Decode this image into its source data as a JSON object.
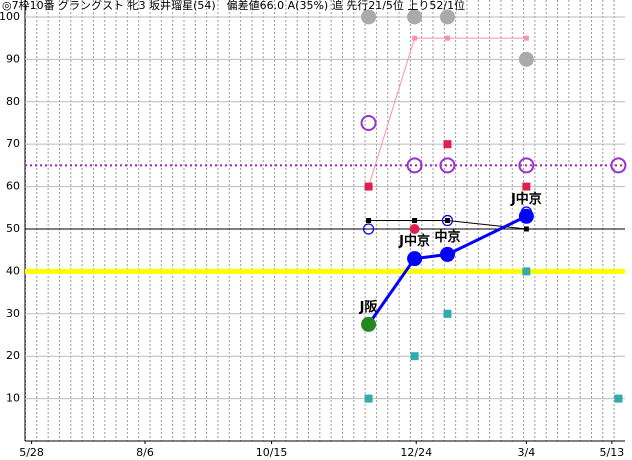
{
  "chart_data": {
    "type": "line",
    "title": "◎7枠10番 グラングスト 牝3 坂井瑠星(54)　偏差値66.0 A(35%) 追 先行21/5位 上り52/1位",
    "xlim": [
      0,
      365
    ],
    "xticks": [
      {
        "value": 4,
        "label": "5/28"
      },
      {
        "value": 73,
        "label": "8/6"
      },
      {
        "value": 150,
        "label": "10/15"
      },
      {
        "value": 238,
        "label": "12/24"
      },
      {
        "value": 305,
        "label": "3/4"
      },
      {
        "value": 357,
        "label": "5/13"
      }
    ],
    "ylim": [
      0,
      104
    ],
    "yticks": [
      10,
      20,
      30,
      40,
      50,
      60,
      70,
      80,
      90,
      100
    ],
    "grid": true,
    "hlines": [
      {
        "value": 50,
        "color": "#000000",
        "style": "thin"
      },
      {
        "value": 65,
        "color": "#a020c0",
        "style": "dotted"
      },
      {
        "value": 40,
        "color": "#ffff00",
        "style": "thick"
      }
    ],
    "series": [
      {
        "color": "#aaaaaa",
        "marker": "big-circle",
        "line": false,
        "x": [
          209,
          237,
          257,
          305
        ],
        "values": [
          100,
          100,
          100,
          90
        ]
      },
      {
        "color": "#9933cc",
        "marker": "ring",
        "line": false,
        "x": [
          209,
          237,
          257,
          305,
          361
        ],
        "values": [
          75,
          65,
          65,
          65,
          65
        ]
      },
      {
        "color": "#ff8fb0",
        "marker": "small-square",
        "line": true,
        "x": [
          209,
          237,
          257,
          305
        ],
        "values": [
          60,
          95,
          95,
          95
        ]
      },
      {
        "color": "#e0204a",
        "marker": "square",
        "line": false,
        "x": [
          209,
          257,
          305
        ],
        "values": [
          60,
          70,
          60
        ]
      },
      {
        "color": "#e0204a",
        "marker": "dot",
        "line": false,
        "x": [
          237
        ],
        "values": [
          50
        ]
      },
      {
        "color": "#000000",
        "marker": "small-square",
        "line": true,
        "x": [
          209,
          237,
          257,
          305
        ],
        "values": [
          52,
          52,
          52,
          50
        ]
      },
      {
        "color": "#0000ff",
        "marker": "small-ring",
        "line": false,
        "x": [
          209,
          257,
          305
        ],
        "values": [
          50,
          52,
          54
        ]
      },
      {
        "color": "#33aaaa",
        "marker": "square",
        "line": false,
        "x": [
          209,
          237,
          257,
          305,
          361
        ],
        "values": [
          10,
          20,
          30,
          40,
          10
        ]
      },
      {
        "color": "#0000ff",
        "marker": "big-circle",
        "line": true,
        "x": [
          209,
          237,
          257,
          305
        ],
        "values": [
          27.5,
          43,
          44,
          53
        ],
        "point_colors": [
          "#228822",
          "#0000ff",
          "#0000ff",
          "#0000ff"
        ],
        "point_labels": [
          "J阪",
          "J中京",
          "中京",
          "J中京"
        ]
      }
    ]
  }
}
